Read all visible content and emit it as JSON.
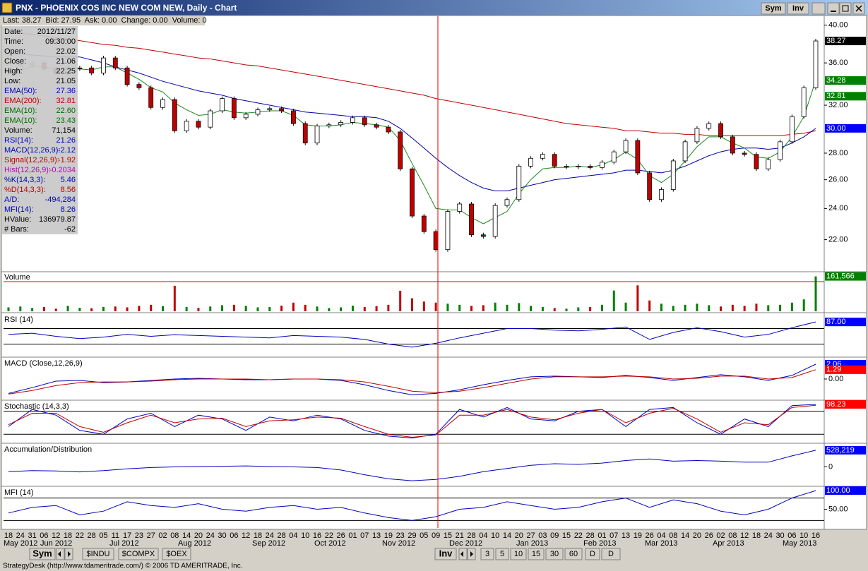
{
  "window": {
    "title": "PNX - PHOENIX COS INC NEW COM NEW, Daily - Chart",
    "buttons": [
      "Sym",
      "Inv"
    ]
  },
  "quote": "Last: 38.27  Bid: 27.95  Ask: 0.00  Change: 0.00  Volume: 0",
  "info_panel": [
    {
      "label": "Date:",
      "value": "2012/11/27",
      "color": "#000000"
    },
    {
      "label": "Time:",
      "value": "09:30:00",
      "color": "#000000"
    },
    {
      "label": "Open:",
      "value": "22.02",
      "color": "#000000"
    },
    {
      "label": "Close:",
      "value": "21.06",
      "color": "#000000"
    },
    {
      "label": "High:",
      "value": "22.25",
      "color": "#000000"
    },
    {
      "label": "Low:",
      "value": "21.05",
      "color": "#000000"
    },
    {
      "label": "EMA(50):",
      "value": "27.36",
      "color": "#0000c0"
    },
    {
      "label": "EMA(200):",
      "value": "32.81",
      "color": "#c00000"
    },
    {
      "label": "EMA(10):",
      "value": "22.60",
      "color": "#007000"
    },
    {
      "label": "EMA(10):",
      "value": "23.43",
      "color": "#007000"
    },
    {
      "label": "Volume:",
      "value": "71,154",
      "color": "#000000"
    },
    {
      "label": "RSI(14):",
      "value": "21.26",
      "color": "#0000c0"
    },
    {
      "label": "MACD(12,26,9):",
      "value": "-2.12",
      "color": "#0000c0"
    },
    {
      "label": "Signal(12,26,9):",
      "value": "-1.92",
      "color": "#c00000"
    },
    {
      "label": "Hist(12,26,9):",
      "value": "-0.2034",
      "color": "#c000c0"
    },
    {
      "label": "%K(14,3,3):",
      "value": "5.46",
      "color": "#0000c0"
    },
    {
      "label": "%D(14,3,3):",
      "value": "8.56",
      "color": "#c00000"
    },
    {
      "label": "A/D:",
      "value": "-494,284",
      "color": "#0000c0"
    },
    {
      "label": "MFI(14):",
      "value": "8.26",
      "color": "#0000c0"
    },
    {
      "label": "HValue:",
      "value": "136979.87",
      "color": "#000000"
    },
    {
      "label": "# Bars:",
      "value": "-62",
      "color": "#000000"
    }
  ],
  "price_chart": {
    "type": "candlestick",
    "log_scale": true,
    "ylim": [
      20.2,
      41.0
    ],
    "yticks": [
      {
        "value": 40,
        "label": "40.00"
      },
      {
        "value": 36,
        "label": "36.00"
      },
      {
        "value": 32,
        "label": "32.00"
      },
      {
        "value": 28,
        "label": "28.00"
      },
      {
        "value": 26,
        "label": "26.00"
      },
      {
        "value": 24,
        "label": "24.00"
      },
      {
        "value": 22,
        "label": "22.00"
      }
    ],
    "close": [
      35.2,
      35.8,
      36.0,
      35.4,
      35.0,
      35.5,
      35.5,
      35.0,
      36.5,
      35.5,
      33.9,
      33.6,
      31.8,
      32.5,
      29.8,
      30.6,
      30.1,
      31.5,
      32.6,
      30.9,
      31.2,
      31.6,
      31.7,
      31.5,
      30.4,
      28.8,
      30.2,
      30.3,
      30.5,
      30.9,
      30.3,
      30.1,
      29.7,
      26.8,
      23.5,
      22.5,
      21.4,
      23.8,
      24.3,
      22.3,
      22.2,
      24.2,
      24.6,
      27.0,
      27.6,
      27.9,
      27.0,
      27.0,
      27.0,
      26.9,
      27.3,
      28.1,
      29.0,
      26.5,
      24.6,
      25.3,
      27.4,
      28.9,
      30.0,
      30.4,
      29.3,
      28.0,
      27.9,
      26.8,
      27.5,
      28.9,
      31.0,
      33.6,
      38.27
    ],
    "up_color": "#ffffff",
    "down_color": "#c00000",
    "series": [
      {
        "color": "#c00000",
        "values": [
          39.3,
          39.1,
          39.0,
          38.8,
          38.6,
          38.5,
          38.3,
          38.1,
          37.9,
          37.8,
          37.6,
          37.5,
          37.3,
          37.1,
          36.9,
          36.7,
          36.5,
          36.4,
          36.2,
          36.0,
          35.8,
          35.7,
          35.5,
          35.3,
          35.1,
          34.9,
          34.7,
          34.5,
          34.3,
          34.1,
          33.9,
          33.7,
          33.5,
          33.3,
          33.1,
          32.9,
          32.6,
          32.4,
          32.2,
          32.0,
          31.8,
          31.6,
          31.4,
          31.2,
          31.0,
          30.8,
          30.6,
          30.4,
          30.3,
          30.2,
          30.1,
          30.0,
          29.8,
          29.8,
          29.7,
          29.6,
          29.6,
          29.5,
          29.5,
          29.4,
          29.4,
          29.4,
          29.4,
          29.4,
          29.4,
          29.4,
          29.5,
          29.6,
          29.8
        ]
      },
      {
        "color": "#0000a0",
        "values": [
          37.0,
          36.9,
          36.8,
          36.7,
          36.6,
          36.6,
          36.6,
          36.3,
          36.0,
          35.6,
          35.3,
          35.0,
          34.6,
          34.2,
          33.9,
          33.6,
          33.3,
          33.1,
          32.9,
          32.6,
          32.4,
          32.2,
          32.0,
          31.8,
          31.6,
          31.4,
          31.3,
          31.2,
          31.1,
          31.0,
          31.0,
          30.9,
          30.6,
          30.0,
          29.2,
          28.4,
          27.6,
          26.9,
          26.3,
          25.8,
          25.4,
          25.2,
          25.2,
          25.4,
          25.6,
          25.8,
          26.0,
          26.1,
          26.2,
          26.3,
          26.4,
          26.5,
          26.7,
          26.7,
          26.6,
          26.5,
          26.7,
          27.0,
          27.4,
          27.8,
          28.1,
          28.3,
          28.4,
          28.4,
          28.3,
          28.4,
          28.8,
          29.3,
          30.0
        ]
      },
      {
        "color": "#1a8a1a",
        "values": [
          35.0,
          35.3,
          35.6,
          35.6,
          35.4,
          35.4,
          35.4,
          35.3,
          35.6,
          35.6,
          35.0,
          34.4,
          33.6,
          33.2,
          32.2,
          31.6,
          31.1,
          31.2,
          31.6,
          31.4,
          31.3,
          31.4,
          31.5,
          31.5,
          31.1,
          30.3,
          30.2,
          30.2,
          30.3,
          30.5,
          30.4,
          30.3,
          30.1,
          29.0,
          27.2,
          25.6,
          24.0,
          23.9,
          23.9,
          23.4,
          23.0,
          23.4,
          23.8,
          25.0,
          26.0,
          26.8,
          26.9,
          26.9,
          27.0,
          26.9,
          27.1,
          27.5,
          28.1,
          27.5,
          26.3,
          25.8,
          26.4,
          27.4,
          28.5,
          29.3,
          29.3,
          28.8,
          28.4,
          27.7,
          27.6,
          28.1,
          29.3,
          31.0,
          34.28
        ]
      }
    ],
    "markers": [
      {
        "value": 38.27,
        "label": "38.27",
        "color": "#000000"
      },
      {
        "value": 34.28,
        "label": "34.28",
        "color": "#008000"
      },
      {
        "value": 32.81,
        "label": "32.81",
        "color": "#008000"
      },
      {
        "value": 30,
        "label": "30.00",
        "color": "#0000ff"
      }
    ]
  },
  "panels": [
    {
      "label": "Volume",
      "type": "bar",
      "ylim": [
        0,
        170000
      ],
      "values": [
        18000,
        22000,
        15000,
        20000,
        12000,
        25000,
        16000,
        14000,
        20000,
        22000,
        18000,
        25000,
        30000,
        24000,
        118000,
        20000,
        16000,
        22000,
        28000,
        30000,
        25000,
        18000,
        20000,
        26000,
        40000,
        30000,
        22000,
        15000,
        18000,
        26000,
        20000,
        24000,
        30000,
        95000,
        60000,
        45000,
        40000,
        35000,
        30000,
        25000,
        28000,
        40000,
        30000,
        38000,
        25000,
        20000,
        15000,
        12000,
        18000,
        20000,
        30000,
        96000,
        40000,
        120000,
        50000,
        35000,
        25000,
        30000,
        35000,
        28000,
        22000,
        30000,
        25000,
        35000,
        28000,
        30000,
        40000,
        55000,
        161566
      ],
      "markers": [
        {
          "value": 161566,
          "label": "161,566",
          "color": "#008000"
        }
      ]
    },
    {
      "label": "RSI (14)",
      "type": "line",
      "ylim": [
        0,
        100
      ],
      "levels": [
        70,
        30
      ],
      "series": [
        {
          "color": "#0000c0",
          "values": [
            55,
            58,
            50,
            44,
            48,
            55,
            50,
            54,
            52,
            50,
            48,
            46,
            52,
            50,
            48,
            42,
            30,
            22,
            32,
            46,
            58,
            70,
            70,
            66,
            64,
            68,
            74,
            42,
            60,
            72,
            62,
            48,
            55,
            72,
            87
          ]
        }
      ],
      "markers": [
        {
          "value": 87,
          "label": "87.00",
          "color": "#0000ff"
        }
      ]
    },
    {
      "label": "MACD (Close,12,26,9)",
      "type": "line",
      "ylim": [
        -2.75,
        2.55
      ],
      "yticks": [
        {
          "value": 0,
          "label": "0.00"
        }
      ],
      "series": [
        {
          "color": "#0000c0",
          "values": [
            -2.0,
            -1.2,
            -0.3,
            -0.2,
            -0.5,
            -0.4,
            -0.2,
            0.0,
            0.1,
            0.0,
            -0.1,
            -0.1,
            0.0,
            0.0,
            -0.2,
            -0.8,
            -1.6,
            -2.2,
            -2.0,
            -1.5,
            -0.8,
            -0.2,
            0.3,
            0.4,
            0.3,
            0.2,
            0.5,
            0.2,
            -0.2,
            0.2,
            0.6,
            0.3,
            -0.2,
            0.5,
            2.06
          ]
        },
        {
          "color": "#c00000",
          "values": [
            -2.1,
            -1.6,
            -0.9,
            -0.5,
            -0.4,
            -0.4,
            -0.3,
            -0.1,
            0.0,
            0.0,
            0.0,
            -0.1,
            0.0,
            0.0,
            -0.1,
            -0.4,
            -1.0,
            -1.7,
            -1.9,
            -1.7,
            -1.2,
            -0.6,
            0.0,
            0.3,
            0.3,
            0.3,
            0.4,
            0.3,
            0.0,
            0.1,
            0.4,
            0.4,
            0.0,
            0.2,
            1.29
          ]
        }
      ],
      "markers": [
        {
          "value": 2.06,
          "label": "2.06",
          "color": "#0000ff"
        },
        {
          "value": 1.29,
          "label": "1.29",
          "color": "#ff0000"
        }
      ]
    },
    {
      "label": "Stochastic (14,3,3)",
      "type": "line",
      "ylim": [
        0,
        100
      ],
      "levels": [
        80,
        20
      ],
      "series": [
        {
          "color": "#0000c0",
          "values": [
            40,
            85,
            70,
            30,
            20,
            60,
            75,
            40,
            70,
            60,
            30,
            65,
            55,
            70,
            60,
            30,
            15,
            10,
            20,
            85,
            65,
            90,
            60,
            55,
            80,
            85,
            40,
            85,
            90,
            50,
            20,
            60,
            40,
            95,
            98.23
          ]
        },
        {
          "color": "#c00000",
          "values": [
            45,
            75,
            75,
            40,
            25,
            50,
            70,
            50,
            60,
            62,
            40,
            55,
            58,
            65,
            62,
            40,
            20,
            12,
            18,
            70,
            70,
            85,
            65,
            58,
            75,
            85,
            50,
            75,
            88,
            60,
            25,
            50,
            45,
            90,
            96
          ]
        }
      ],
      "markers": [
        {
          "value": 98.23,
          "label": "98.23",
          "color": "#ff0000"
        }
      ]
    },
    {
      "label": "Accumulation/Distribution",
      "type": "line",
      "ylim": [
        -572000,
        638000
      ],
      "yticks": [
        0
      ],
      "series": [
        {
          "color": "#0000c0",
          "values": [
            -150000,
            -120000,
            -130000,
            -160000,
            -120000,
            -60000,
            -20000,
            0,
            10000,
            20000,
            30000,
            10000,
            0,
            -20000,
            -100000,
            -250000,
            -380000,
            -440000,
            -400000,
            -300000,
            -150000,
            -50000,
            50000,
            100000,
            80000,
            120000,
            200000,
            250000,
            180000,
            200000,
            180000,
            150000,
            150000,
            350000,
            528219
          ]
        }
      ],
      "markers": [
        {
          "value": 528219,
          "label": "528,219",
          "color": "#0000ff"
        }
      ]
    },
    {
      "label": "MFI (14)",
      "type": "line",
      "ylim": [
        0,
        102
      ],
      "levels": [
        80,
        20
      ],
      "yticks": [
        {
          "value": 50,
          "label": "50.00"
        }
      ],
      "series": [
        {
          "color": "#0000c0",
          "values": [
            40,
            55,
            60,
            35,
            45,
            70,
            60,
            55,
            65,
            50,
            45,
            55,
            60,
            50,
            55,
            40,
            28,
            20,
            30,
            50,
            55,
            70,
            60,
            50,
            55,
            70,
            80,
            55,
            75,
            65,
            45,
            35,
            50,
            80,
            100
          ]
        }
      ],
      "markers": [
        {
          "value": 100,
          "label": "100.00",
          "color": "#0000ff"
        }
      ]
    }
  ],
  "date_axis": {
    "days": [
      "18",
      "24",
      "31",
      "06",
      "12",
      "18",
      "22",
      "28",
      "05",
      "11",
      "17",
      "23",
      "27",
      "02",
      "08",
      "14",
      "20",
      "24",
      "30",
      "06",
      "12",
      "18",
      "24",
      "28",
      "04",
      "10",
      "16",
      "22",
      "26",
      "01",
      "07",
      "13",
      "19",
      "23",
      "29",
      "05",
      "09",
      "15",
      "21",
      "28",
      "04",
      "10",
      "14",
      "20",
      "27",
      "03",
      "09",
      "15",
      "22",
      "28",
      "01",
      "07",
      "13",
      "19",
      "26",
      "04",
      "08",
      "14",
      "20",
      "26",
      "02",
      "08",
      "12",
      "18",
      "24",
      "30",
      "06",
      "10",
      "16"
    ],
    "months": [
      "May 2012",
      "Jun 2012",
      "Jul 2012",
      "Aug 2012",
      "Sep 2012",
      "Oct 2012",
      "Nov 2012",
      "Dec 2012",
      "Jan 2013",
      "Feb 2013",
      "Mar 2013",
      "Apr 2013",
      "May 2013"
    ]
  },
  "toolbar": {
    "symbol": "Sym",
    "tabs": [
      "$INDU",
      "$COMPX",
      "$OEX"
    ],
    "inv": "Inv",
    "intervals": [
      "3",
      "5",
      "10",
      "15",
      "30",
      "60",
      "D",
      "D"
    ]
  },
  "status": "StrategyDesk (http://www.tdameritrade.com/) © 2006 TD AMERITRADE, Inc."
}
